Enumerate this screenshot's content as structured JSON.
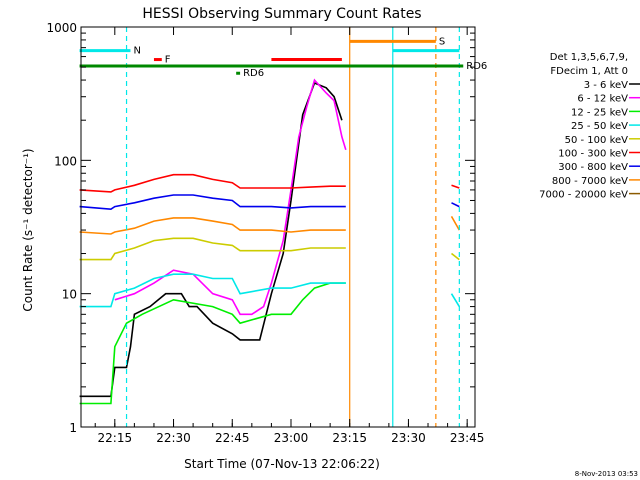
{
  "chart_data": {
    "type": "line",
    "title": "HESSI Observing Summary Count Rates",
    "xlabel": "Start Time (07-Nov-13 22:06:22)",
    "ylabel": "Count Rate (s⁻¹ detector⁻¹)",
    "y_scale": "log",
    "xlim": [
      "22:06:22",
      "23:47:00"
    ],
    "ylim": [
      1,
      1000
    ],
    "x_ticks": [
      "22:15",
      "22:30",
      "22:45",
      "23:00",
      "23:15",
      "23:30",
      "23:45"
    ],
    "y_ticks": [
      "1",
      "10",
      "100",
      "1000"
    ],
    "grid": false,
    "timestamp": "8-Nov-2013 03:53",
    "legend": {
      "placement": "right",
      "header": [
        "Det 1,3,5,6,7,9,",
        "FDecim 1, Att 0"
      ],
      "entries": [
        {
          "label": "3 - 6 keV",
          "color": "#000000"
        },
        {
          "label": "6 - 12 keV",
          "color": "#ff00ff"
        },
        {
          "label": "12 - 25 keV",
          "color": "#00ee00"
        },
        {
          "label": "25 - 50 keV",
          "color": "#00e8e8"
        },
        {
          "label": "50 - 100 keV",
          "color": "#cccc00"
        },
        {
          "label": "100 - 300 keV",
          "color": "#ff0000"
        },
        {
          "label": "300 - 800 keV",
          "color": "#0000ee"
        },
        {
          "label": "800 - 7000 keV",
          "color": "#ff8800"
        },
        {
          "label": "7000 - 20000 keV",
          "color": "#8b5a00"
        }
      ]
    },
    "series": [
      {
        "name": "3 - 6 keV",
        "color": "#000000",
        "points": [
          [
            "22:06",
            "1.7"
          ],
          [
            "22:14",
            "1.7"
          ],
          [
            "22:15",
            "2.8"
          ],
          [
            "22:18",
            "2.8"
          ],
          [
            "22:19",
            "4"
          ],
          [
            "22:20",
            "7"
          ],
          [
            "22:24",
            "8"
          ],
          [
            "22:28",
            "10"
          ],
          [
            "22:32",
            "10"
          ],
          [
            "22:34",
            "8"
          ],
          [
            "22:36",
            "8"
          ],
          [
            "22:40",
            "6"
          ],
          [
            "22:45",
            "5"
          ],
          [
            "22:47",
            "4.5"
          ],
          [
            "22:50",
            "4.5"
          ],
          [
            "22:52",
            "4.5"
          ],
          [
            "22:55",
            "10"
          ],
          [
            "22:58",
            "20"
          ],
          [
            "23:00",
            "50"
          ],
          [
            "23:03",
            "220"
          ],
          [
            "23:06",
            "380"
          ],
          [
            "23:09",
            "350"
          ],
          [
            "23:11",
            "300"
          ],
          [
            "23:13",
            "200"
          ]
        ]
      },
      {
        "name": "6 - 12 keV",
        "color": "#ff00ff",
        "points": [
          [
            "22:15",
            "9"
          ],
          [
            "22:20",
            "10"
          ],
          [
            "22:25",
            "12"
          ],
          [
            "22:30",
            "15"
          ],
          [
            "22:35",
            "14"
          ],
          [
            "22:40",
            "10"
          ],
          [
            "22:45",
            "9"
          ],
          [
            "22:47",
            "7"
          ],
          [
            "22:50",
            "7"
          ],
          [
            "22:53",
            "8"
          ],
          [
            "22:55",
            "12"
          ],
          [
            "22:58",
            "25"
          ],
          [
            "23:00",
            "60"
          ],
          [
            "23:02",
            "150"
          ],
          [
            "23:04",
            "250"
          ],
          [
            "23:06",
            "400"
          ],
          [
            "23:09",
            "320"
          ],
          [
            "23:11",
            "280"
          ],
          [
            "23:13",
            "150"
          ],
          [
            "23:14",
            "120"
          ]
        ]
      },
      {
        "name": "12 - 25 keV",
        "color": "#00ee00",
        "points": [
          [
            "22:06",
            "1.5"
          ],
          [
            "22:14",
            "1.5"
          ],
          [
            "22:15",
            "4"
          ],
          [
            "22:18",
            "6"
          ],
          [
            "22:22",
            "7"
          ],
          [
            "22:30",
            "9"
          ],
          [
            "22:40",
            "8"
          ],
          [
            "22:45",
            "7"
          ],
          [
            "22:47",
            "6"
          ],
          [
            "22:55",
            "7"
          ],
          [
            "23:00",
            "7"
          ],
          [
            "23:03",
            "9"
          ],
          [
            "23:06",
            "11"
          ],
          [
            "23:10",
            "12"
          ],
          [
            "23:14",
            "12"
          ]
        ]
      },
      {
        "name": "25 - 50 keV",
        "color": "#00e8e8",
        "points": [
          [
            "22:06",
            "8"
          ],
          [
            "22:14",
            "8"
          ],
          [
            "22:15",
            "10"
          ],
          [
            "22:20",
            "11"
          ],
          [
            "22:25",
            "13"
          ],
          [
            "22:30",
            "14"
          ],
          [
            "22:35",
            "14"
          ],
          [
            "22:40",
            "13"
          ],
          [
            "22:45",
            "13"
          ],
          [
            "22:47",
            "10"
          ],
          [
            "22:55",
            "11"
          ],
          [
            "23:00",
            "11"
          ],
          [
            "23:05",
            "12"
          ],
          [
            "23:10",
            "12"
          ],
          [
            "23:14",
            "12"
          ]
        ]
      },
      {
        "name": "50 - 100 keV",
        "color": "#cccc00",
        "points": [
          [
            "22:06",
            "18"
          ],
          [
            "22:14",
            "18"
          ],
          [
            "22:15",
            "20"
          ],
          [
            "22:20",
            "22"
          ],
          [
            "22:25",
            "25"
          ],
          [
            "22:30",
            "26"
          ],
          [
            "22:35",
            "26"
          ],
          [
            "22:40",
            "24"
          ],
          [
            "22:45",
            "23"
          ],
          [
            "22:47",
            "21"
          ],
          [
            "22:55",
            "21"
          ],
          [
            "23:00",
            "21"
          ],
          [
            "23:05",
            "22"
          ],
          [
            "23:10",
            "22"
          ],
          [
            "23:14",
            "22"
          ]
        ]
      },
      {
        "name": "100 - 300 keV",
        "color": "#ff0000",
        "points": [
          [
            "22:06",
            "60"
          ],
          [
            "22:14",
            "58"
          ],
          [
            "22:15",
            "60"
          ],
          [
            "22:20",
            "65"
          ],
          [
            "22:25",
            "72"
          ],
          [
            "22:30",
            "78"
          ],
          [
            "22:35",
            "78"
          ],
          [
            "22:40",
            "72"
          ],
          [
            "22:45",
            "68"
          ],
          [
            "22:47",
            "62"
          ],
          [
            "22:55",
            "62"
          ],
          [
            "23:00",
            "62"
          ],
          [
            "23:05",
            "63"
          ],
          [
            "23:10",
            "64"
          ],
          [
            "23:14",
            "64"
          ]
        ]
      },
      {
        "name": "300 - 800 keV",
        "color": "#0000ee",
        "points": [
          [
            "22:06",
            "45"
          ],
          [
            "22:14",
            "43"
          ],
          [
            "22:15",
            "45"
          ],
          [
            "22:20",
            "48"
          ],
          [
            "22:25",
            "52"
          ],
          [
            "22:30",
            "55"
          ],
          [
            "22:35",
            "55"
          ],
          [
            "22:40",
            "52"
          ],
          [
            "22:45",
            "50"
          ],
          [
            "22:47",
            "45"
          ],
          [
            "22:55",
            "45"
          ],
          [
            "23:00",
            "44"
          ],
          [
            "23:05",
            "45"
          ],
          [
            "23:10",
            "45"
          ],
          [
            "23:14",
            "45"
          ]
        ]
      },
      {
        "name": "800 - 7000 keV",
        "color": "#ff8800",
        "points": [
          [
            "22:06",
            "29"
          ],
          [
            "22:14",
            "28"
          ],
          [
            "22:15",
            "29"
          ],
          [
            "22:20",
            "31"
          ],
          [
            "22:25",
            "35"
          ],
          [
            "22:30",
            "37"
          ],
          [
            "22:35",
            "37"
          ],
          [
            "22:40",
            "35"
          ],
          [
            "22:45",
            "33"
          ],
          [
            "22:47",
            "30"
          ],
          [
            "22:55",
            "30"
          ],
          [
            "23:00",
            "29"
          ],
          [
            "23:05",
            "30"
          ],
          [
            "23:10",
            "30"
          ],
          [
            "23:14",
            "30"
          ]
        ]
      }
    ],
    "after_gap": [
      {
        "name": "100 - 300 keV",
        "color": "#ff0000",
        "points": [
          [
            "23:41",
            "65"
          ],
          [
            "23:43",
            "62"
          ]
        ]
      },
      {
        "name": "300 - 800 keV",
        "color": "#0000ee",
        "points": [
          [
            "23:41",
            "48"
          ],
          [
            "23:43",
            "45"
          ]
        ]
      },
      {
        "name": "800 - 7000 keV",
        "color": "#ff8800",
        "points": [
          [
            "23:41",
            "38"
          ],
          [
            "23:43",
            "30"
          ]
        ]
      },
      {
        "name": "50 - 100 keV",
        "color": "#cccc00",
        "points": [
          [
            "23:41",
            "20"
          ],
          [
            "23:43",
            "18"
          ]
        ]
      },
      {
        "name": "25 - 50 keV",
        "color": "#00e8e8",
        "points": [
          [
            "23:41",
            "10"
          ],
          [
            "23:43",
            "8"
          ]
        ]
      }
    ],
    "flag_bars": [
      {
        "label": "N",
        "color": "#00e8e8",
        "start": "22:06",
        "end": "22:19",
        "level": "665"
      },
      {
        "label": "",
        "color": "#00e8e8",
        "start": "23:26",
        "end": "23:43",
        "level": "665"
      },
      {
        "label": "F",
        "color": "#ff0000",
        "start": "22:25",
        "end": "22:27",
        "level": "570"
      },
      {
        "label": "",
        "color": "#ff0000",
        "start": "22:55",
        "end": "23:13",
        "level": "570"
      },
      {
        "label": "S",
        "color": "#ff8800",
        "start": "23:15",
        "end": "23:37",
        "level": "780"
      },
      {
        "label": "RD6",
        "color": "#008800",
        "start": "22:06",
        "end": "23:44",
        "level": "510"
      },
      {
        "label": "RD6",
        "color": "#008800",
        "start": "22:46",
        "end": "22:47",
        "level": "450"
      }
    ],
    "vertical_markers": [
      {
        "time": "22:18",
        "color": "#00e8e8",
        "style": "dashed"
      },
      {
        "time": "23:15",
        "color": "#ff8800",
        "style": "solid"
      },
      {
        "time": "23:26",
        "color": "#00e8e8",
        "style": "solid"
      },
      {
        "time": "23:37",
        "color": "#ff8800",
        "style": "dashed"
      },
      {
        "time": "23:43",
        "color": "#00e8e8",
        "style": "dashed"
      }
    ]
  }
}
